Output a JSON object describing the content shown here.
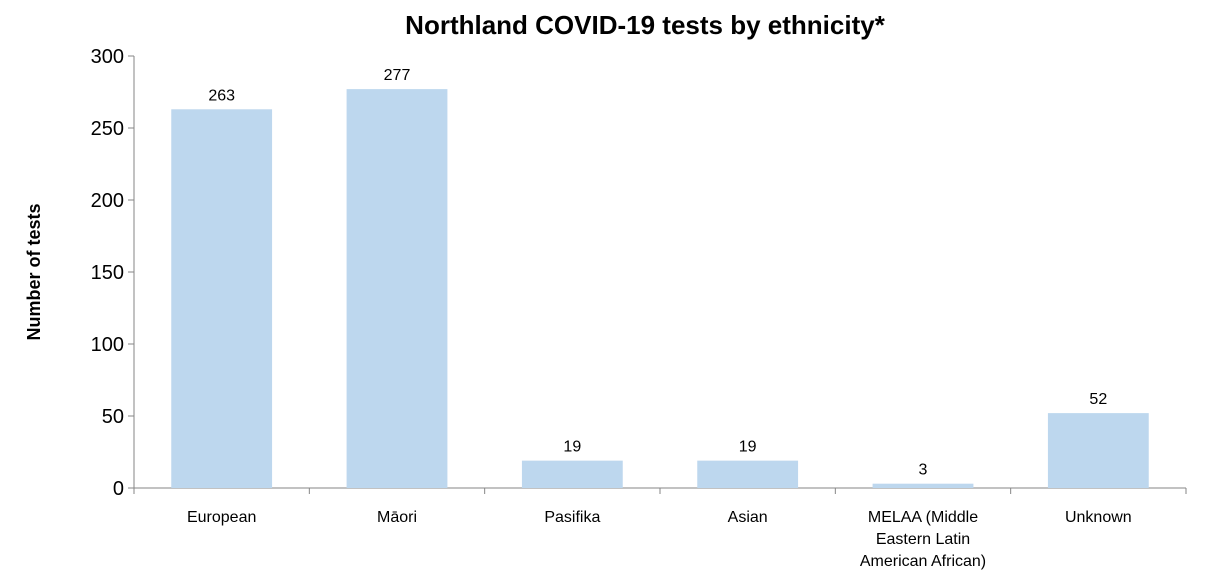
{
  "chart_data": {
    "type": "bar",
    "title": "Northland COVID-19 tests by ethnicity*",
    "xlabel": "",
    "ylabel": "Number of tests",
    "categories": [
      [
        "European"
      ],
      [
        "Māori"
      ],
      [
        "Pasifika"
      ],
      [
        "Asian"
      ],
      [
        "MELAA (Middle",
        "Eastern Latin",
        "American African)"
      ],
      [
        "Unknown"
      ]
    ],
    "values": [
      263,
      277,
      19,
      19,
      3,
      52
    ],
    "data_labels": [
      "263",
      "277",
      "19",
      "19",
      "3",
      "52"
    ],
    "ylim": [
      0,
      300
    ],
    "yticks": [
      0,
      50,
      100,
      150,
      200,
      250,
      300
    ],
    "grid": false,
    "legend": "none",
    "bar_color": "#bdd7ee"
  }
}
